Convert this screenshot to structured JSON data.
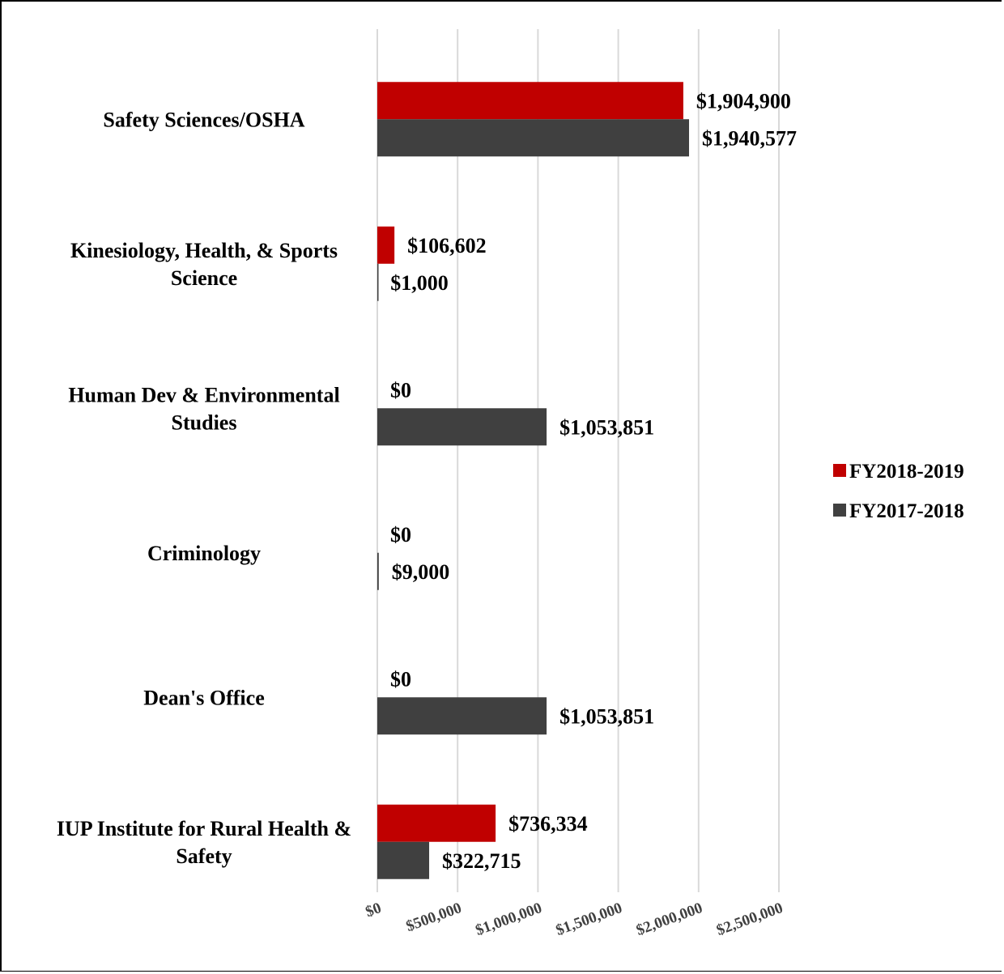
{
  "chart_data": {
    "type": "bar",
    "orientation": "horizontal",
    "categories": [
      [
        "Safety Sciences/OSHA"
      ],
      [
        "Kinesiology, Health, & Sports",
        "Science"
      ],
      [
        "Human Dev & Environmental",
        "Studies"
      ],
      [
        "Criminology"
      ],
      [
        "Dean's Office"
      ],
      [
        "IUP Institute for Rural Health &",
        "Safety"
      ]
    ],
    "series": [
      {
        "name": "FY2018-2019",
        "color": "#c00000",
        "values": [
          1904900,
          106602,
          0,
          0,
          0,
          736334
        ],
        "labels": [
          "$1,904,900",
          "$106,602",
          "$0",
          "$0",
          "$0",
          "$736,334"
        ]
      },
      {
        "name": "FY2017-2018",
        "color": "#404040",
        "values": [
          1940577,
          1000,
          1053851,
          9000,
          1053851,
          322715
        ],
        "labels": [
          "$1,940,577",
          "$1,000",
          "$1,053,851",
          "$9,000",
          "$1,053,851",
          "$322,715"
        ]
      }
    ],
    "xlim": [
      0,
      2500000
    ],
    "xticks": [
      0,
      500000,
      1000000,
      1500000,
      2000000,
      2500000
    ],
    "xtick_labels": [
      "$0",
      "$500,000",
      "$1,000,000",
      "$1,500,000",
      "$2,000,000",
      "$2,500,000"
    ],
    "grid": true,
    "legend_position": "right",
    "title": "",
    "xlabel": "",
    "ylabel": ""
  }
}
